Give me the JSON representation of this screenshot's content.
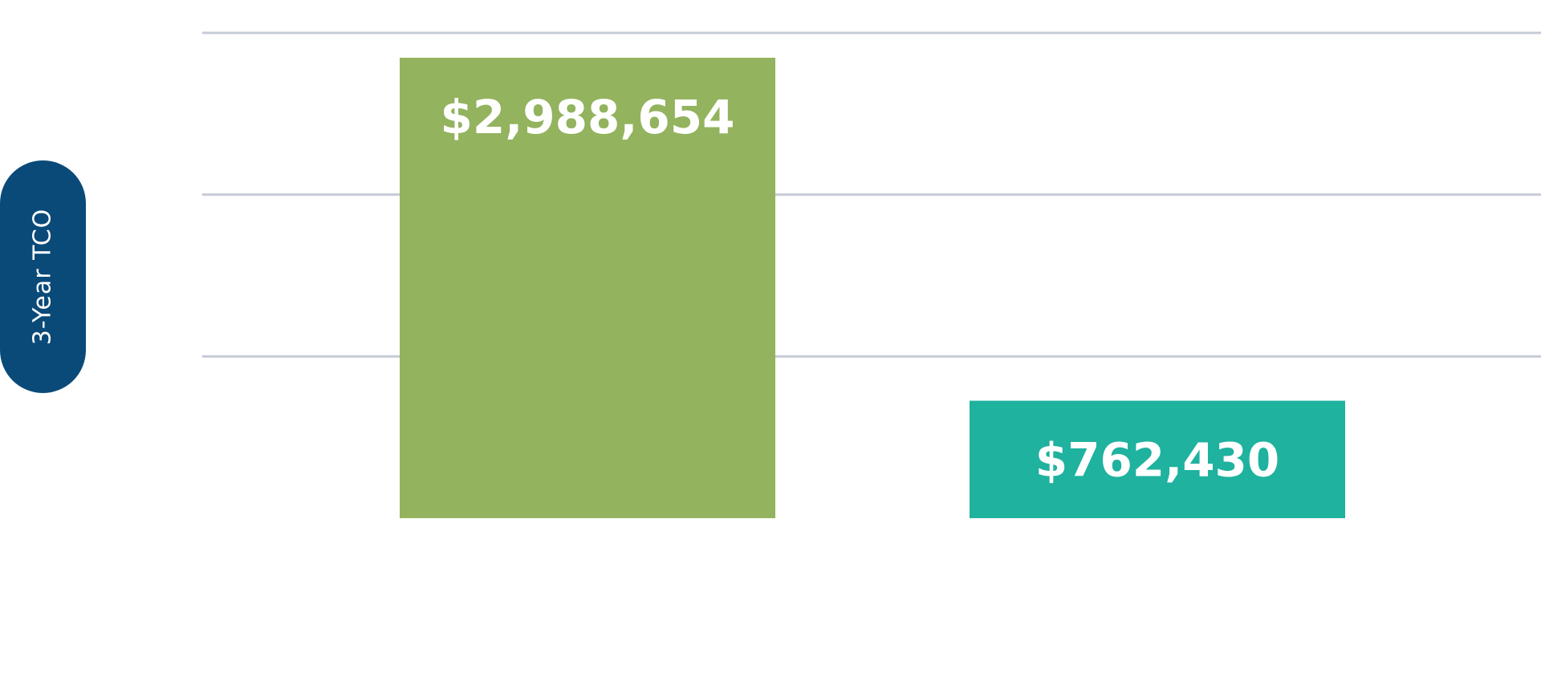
{
  "chart_data": {
    "type": "bar",
    "categories": [
      "",
      ""
    ],
    "values": [
      2988654,
      762430
    ],
    "value_labels": [
      "$2,988,654",
      "$762,430"
    ],
    "bar_colors": [
      "#93b35e",
      "#1eb29f"
    ],
    "title": "",
    "xlabel": "",
    "ylabel": "3-Year TCO",
    "ylim": [
      0,
      3150000
    ],
    "gridlines": [
      1050000,
      2100000,
      3150000
    ],
    "grid": true,
    "legend": "none"
  },
  "colors": {
    "ylabel_pill": "#0a4a79",
    "grid": "#c5ccd6",
    "label_text": "#ffffff"
  }
}
